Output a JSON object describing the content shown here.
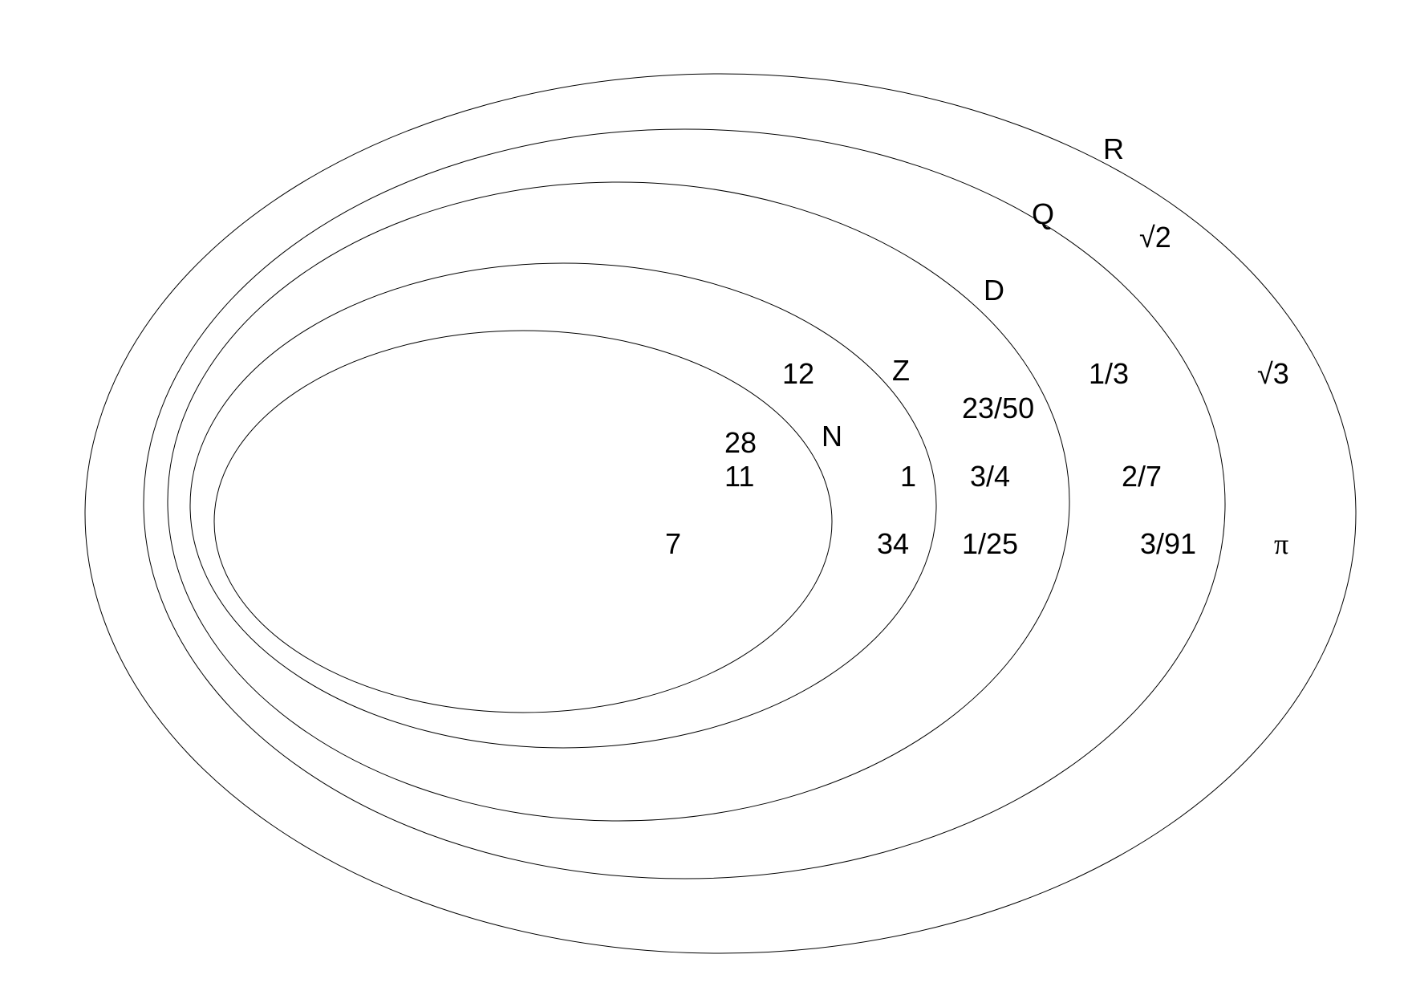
{
  "sets": {
    "R": "R",
    "Q": "Q",
    "D": "D",
    "Z": "Z",
    "N": "N"
  },
  "elements": {
    "n_12": "12",
    "n_28": "28",
    "n_11": "11",
    "n_7": "7",
    "z_1": "1",
    "z_34": "34",
    "d_23_50": "23/50",
    "d_3_4": "3/4",
    "d_1_25": "1/25",
    "q_1_3": "1/3",
    "q_2_7": "2/7",
    "q_3_91": "3/91",
    "r_sqrt2": "√2",
    "r_sqrt3": "√3",
    "r_pi": "π"
  }
}
